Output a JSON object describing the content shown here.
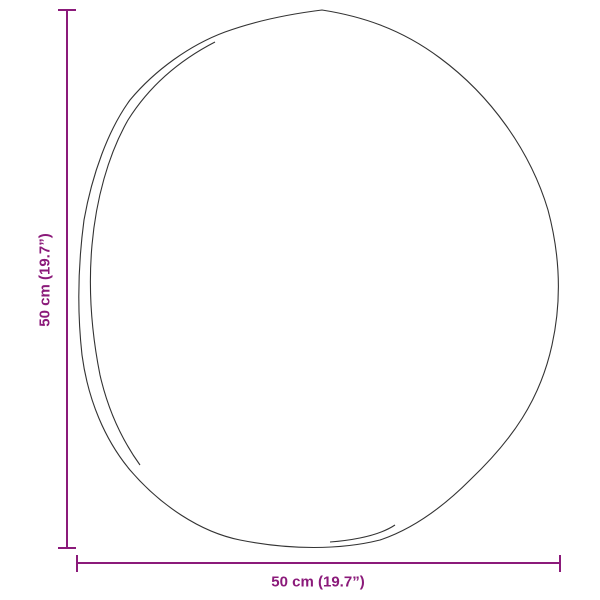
{
  "dimensions": {
    "width_label": "50 cm (19.7”)",
    "height_label": "50 cm (19.7”)"
  },
  "colors": {
    "dimension_line": "#8b1a7a",
    "outline": "#333333"
  },
  "shape": "round-mirror-outline"
}
